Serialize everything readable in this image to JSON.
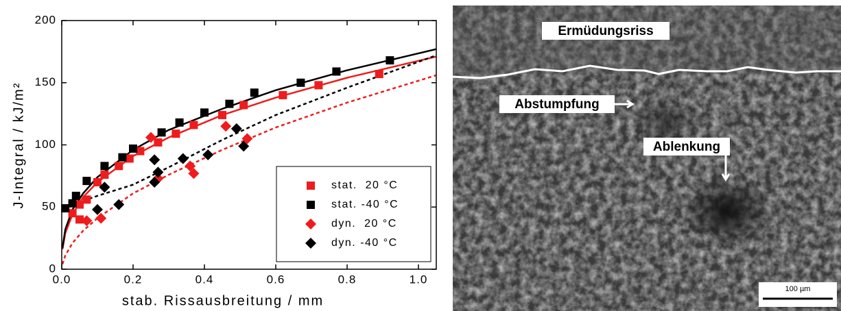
{
  "chart_data": {
    "type": "scatter",
    "xlabel": "stab. Rissausbreitung / mm",
    "ylabel": "J-Integral / kJ/m²",
    "xlim": [
      0,
      1.05
    ],
    "ylim": [
      0,
      200
    ],
    "xticks": [
      {
        "value": 0,
        "label": "0.0"
      },
      0.2,
      0.4,
      0.6,
      0.8,
      {
        "value": 1,
        "label": "1.0"
      }
    ],
    "yticks": [
      0,
      50,
      100,
      150,
      200
    ],
    "legend": "lower right",
    "series": [
      {
        "name": "stat.  20 °C",
        "color": "#ee1c1c",
        "marker": "square",
        "x": [
          0.03,
          0.05,
          0.05,
          0.07,
          0.1,
          0.12,
          0.16,
          0.19,
          0.22,
          0.27,
          0.32,
          0.37,
          0.45,
          0.51,
          0.62,
          0.72,
          0.89
        ],
        "values": [
          45,
          52,
          40,
          56,
          70,
          76,
          83,
          89,
          95,
          102,
          109,
          116,
          124,
          132,
          140,
          148,
          157
        ]
      },
      {
        "name": "stat. -40 °C",
        "color": "#000000",
        "marker": "square",
        "x": [
          0.01,
          0.03,
          0.04,
          0.07,
          0.12,
          0.17,
          0.2,
          0.28,
          0.33,
          0.4,
          0.47,
          0.54,
          0.67,
          0.77,
          0.92
        ],
        "values": [
          49,
          53,
          59,
          71,
          83,
          90,
          97,
          110,
          118,
          126,
          133,
          142,
          150,
          159,
          168
        ]
      },
      {
        "name": "dyn.  20 °C",
        "color": "#ee1c1c",
        "marker": "diamond",
        "x": [
          0.07,
          0.11,
          0.25,
          0.27,
          0.36,
          0.37,
          0.46,
          0.52
        ],
        "values": [
          39,
          41,
          106,
          73,
          83,
          77,
          115,
          105
        ]
      },
      {
        "name": "dyn. -40 °C",
        "color": "#000000",
        "marker": "diamond",
        "x": [
          0.1,
          0.12,
          0.16,
          0.26,
          0.27,
          0.26,
          0.34,
          0.41,
          0.49,
          0.51
        ],
        "values": [
          48,
          66,
          52,
          88,
          78,
          70,
          89,
          92,
          113,
          99
        ]
      }
    ],
    "fits": [
      {
        "color": "#ee1c1c",
        "style": "solid",
        "x": [
          0.002,
          0.01,
          0.03,
          0.06,
          0.1,
          0.2,
          0.3,
          0.45,
          0.6,
          0.8,
          1.05
        ],
        "values": [
          16,
          29,
          44,
          58,
          70,
          91,
          106,
          124,
          138,
          154,
          171
        ]
      },
      {
        "color": "#000000",
        "style": "solid",
        "x": [
          0.002,
          0.01,
          0.03,
          0.06,
          0.1,
          0.2,
          0.3,
          0.45,
          0.6,
          0.8,
          1.05
        ],
        "values": [
          17,
          32,
          48,
          61,
          74,
          96,
          112,
          129,
          144,
          160,
          177
        ]
      },
      {
        "color": "#ee1c1c",
        "style": "dashed",
        "x": [
          0.002,
          0.01,
          0.03,
          0.06,
          0.1,
          0.2,
          0.3,
          0.45,
          0.6,
          0.8,
          1.05
        ],
        "values": [
          4,
          11,
          21,
          31,
          41,
          61,
          76,
          96,
          114,
          134,
          156
        ]
      },
      {
        "color": "#000000",
        "style": "dashed",
        "x": [
          0.06,
          0.1,
          0.2,
          0.3,
          0.45,
          0.6,
          0.8,
          1.05
        ],
        "values": [
          55,
          59,
          68,
          82,
          104,
          124,
          146,
          172
        ]
      }
    ]
  },
  "image": {
    "labels": [
      "Ermüdungsriss",
      "Abstumpfung",
      "Ablenkung"
    ],
    "scale_bar": "100 µm"
  }
}
